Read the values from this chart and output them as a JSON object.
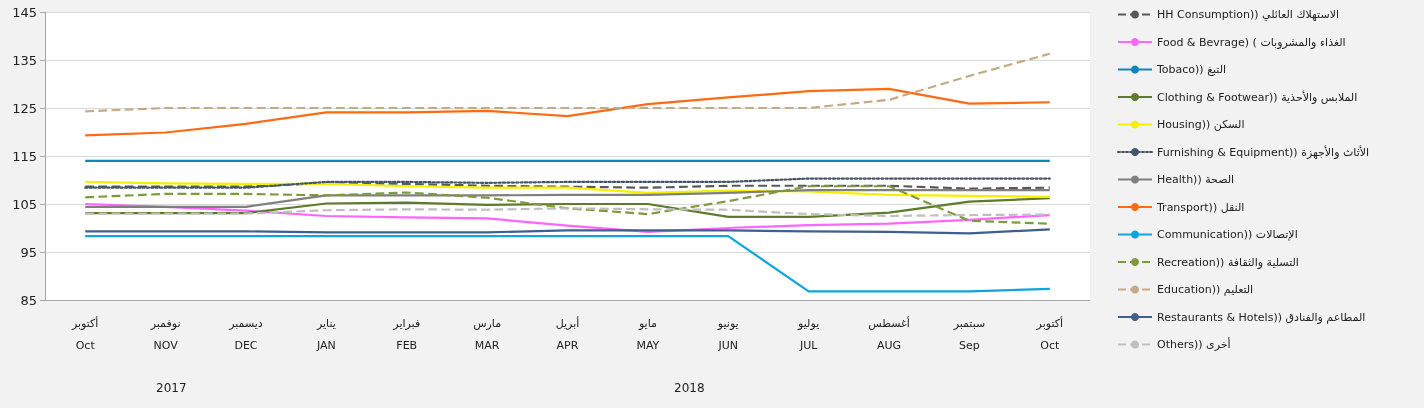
{
  "chart_data": {
    "type": "line",
    "categories": [
      "أكتوبر\nOct",
      "نوفمبر\nNOV",
      "ديسمبر\nDEC",
      "يناير\nJAN",
      "فبراير\nFEB",
      "مارس\nMAR",
      "أبريل\nAPR",
      "مايو\nMAY",
      "يونيو\nJUN",
      "يوليو\nJUL",
      "أغسطس\nAUG",
      "سبتمبر\nSep",
      "أكتوبر\nOct"
    ],
    "annotations": [
      "2017",
      "2018"
    ],
    "ylim": [
      85,
      145
    ],
    "yticks": [
      85,
      95,
      105,
      115,
      125,
      135,
      145
    ],
    "grid": "y",
    "legend": "right",
    "marker": "none",
    "series": [
      {
        "name": "HH Consumption)) الاستهلاك العائلي",
        "color": "#595959",
        "line_style": "dashed",
        "values": [
          108.6,
          108.6,
          108.6,
          109.4,
          109.2,
          108.8,
          108.6,
          108.4,
          108.8,
          108.8,
          108.8,
          108.2,
          108.4
        ]
      },
      {
        "name": "Food & Bevrage) ( الغذاء والمشروبات",
        "color": "#ff66ff",
        "line_style": "solid",
        "values": [
          105.0,
          104.4,
          103.6,
          102.5,
          102.2,
          102.0,
          100.5,
          99.2,
          100.0,
          100.6,
          100.9,
          101.7,
          102.7
        ]
      },
      {
        "name": "Tobaco)) التبغ",
        "color": "#0e86b8",
        "line_style": "solid",
        "values": [
          114,
          114,
          114,
          114,
          114,
          114,
          114,
          114,
          114,
          114,
          114,
          114,
          114
        ]
      },
      {
        "name": "Clothing & Footwear)) الملابس والأحذية",
        "color": "#5e7a2b",
        "line_style": "solid",
        "values": [
          103.1,
          103.1,
          103.1,
          105.1,
          105.3,
          104.8,
          105.0,
          105.0,
          102.3,
          102.3,
          103.2,
          105.5,
          106.2
        ]
      },
      {
        "name": "Housing)) السكن",
        "color": "#f5f000",
        "line_style": "solid",
        "values": [
          109.6,
          109.3,
          109.2,
          109.2,
          108.7,
          108.4,
          108.4,
          107.3,
          107.8,
          107.6,
          106.9,
          106.7,
          106.5
        ]
      },
      {
        "name": "Furnishing & Equipment)) الأثاث والأجهزة",
        "color": "#44546a",
        "line_style": "dotted",
        "values": [
          108.4,
          108.4,
          108.4,
          109.6,
          109.6,
          109.4,
          109.6,
          109.6,
          109.6,
          110.3,
          110.3,
          110.3,
          110.3
        ]
      },
      {
        "name": "Health)) الصحة",
        "color": "#7f7f7f",
        "line_style": "solid",
        "values": [
          104.4,
          104.4,
          104.4,
          106.8,
          106.8,
          106.8,
          106.9,
          106.9,
          107.3,
          107.9,
          107.9,
          107.9,
          107.9
        ]
      },
      {
        "name": "Transport)) النقل",
        "color": "#ff6a13",
        "line_style": "solid",
        "values": [
          119.3,
          119.9,
          121.7,
          124.1,
          124.1,
          124.4,
          123.3,
          125.8,
          127.2,
          128.5,
          129.0,
          125.9,
          126.2
        ]
      },
      {
        "name": "Communication)) الإتصالات",
        "color": "#0fa5dc",
        "line_style": "solid",
        "values": [
          98.3,
          98.3,
          98.3,
          98.3,
          98.3,
          98.3,
          98.3,
          98.3,
          98.3,
          86.8,
          86.8,
          86.8,
          87.3
        ]
      },
      {
        "name": "Recreation)) التسلية والثقافة",
        "color": "#7f9a3c",
        "line_style": "dashed",
        "values": [
          106.4,
          107.1,
          107.1,
          106.8,
          107.4,
          106.3,
          104.1,
          102.9,
          105.6,
          108.7,
          108.7,
          101.5,
          100.9
        ]
      },
      {
        "name": "Education)) التعليم",
        "color": "#c4ab86",
        "line_style": "dashed",
        "values": [
          124.3,
          125,
          125,
          125,
          125,
          125,
          125,
          125,
          125,
          125,
          126.7,
          131.7,
          136.3
        ]
      },
      {
        "name": "Restaurants & Hotels)) المطاعم والفنادق",
        "color": "#3f5f8f",
        "line_style": "solid",
        "values": [
          99.3,
          99.3,
          99.3,
          99.1,
          99.1,
          99.1,
          99.5,
          99.5,
          99.5,
          99.3,
          99.2,
          98.9,
          99.7
        ]
      },
      {
        "name": "Others)) أخرى",
        "color": "#bfbfbf",
        "line_style": "dashed",
        "values": [
          103.0,
          103.0,
          103.0,
          103.7,
          103.9,
          103.8,
          104.1,
          103.9,
          103.8,
          102.9,
          102.5,
          102.7,
          102.8
        ]
      }
    ]
  }
}
